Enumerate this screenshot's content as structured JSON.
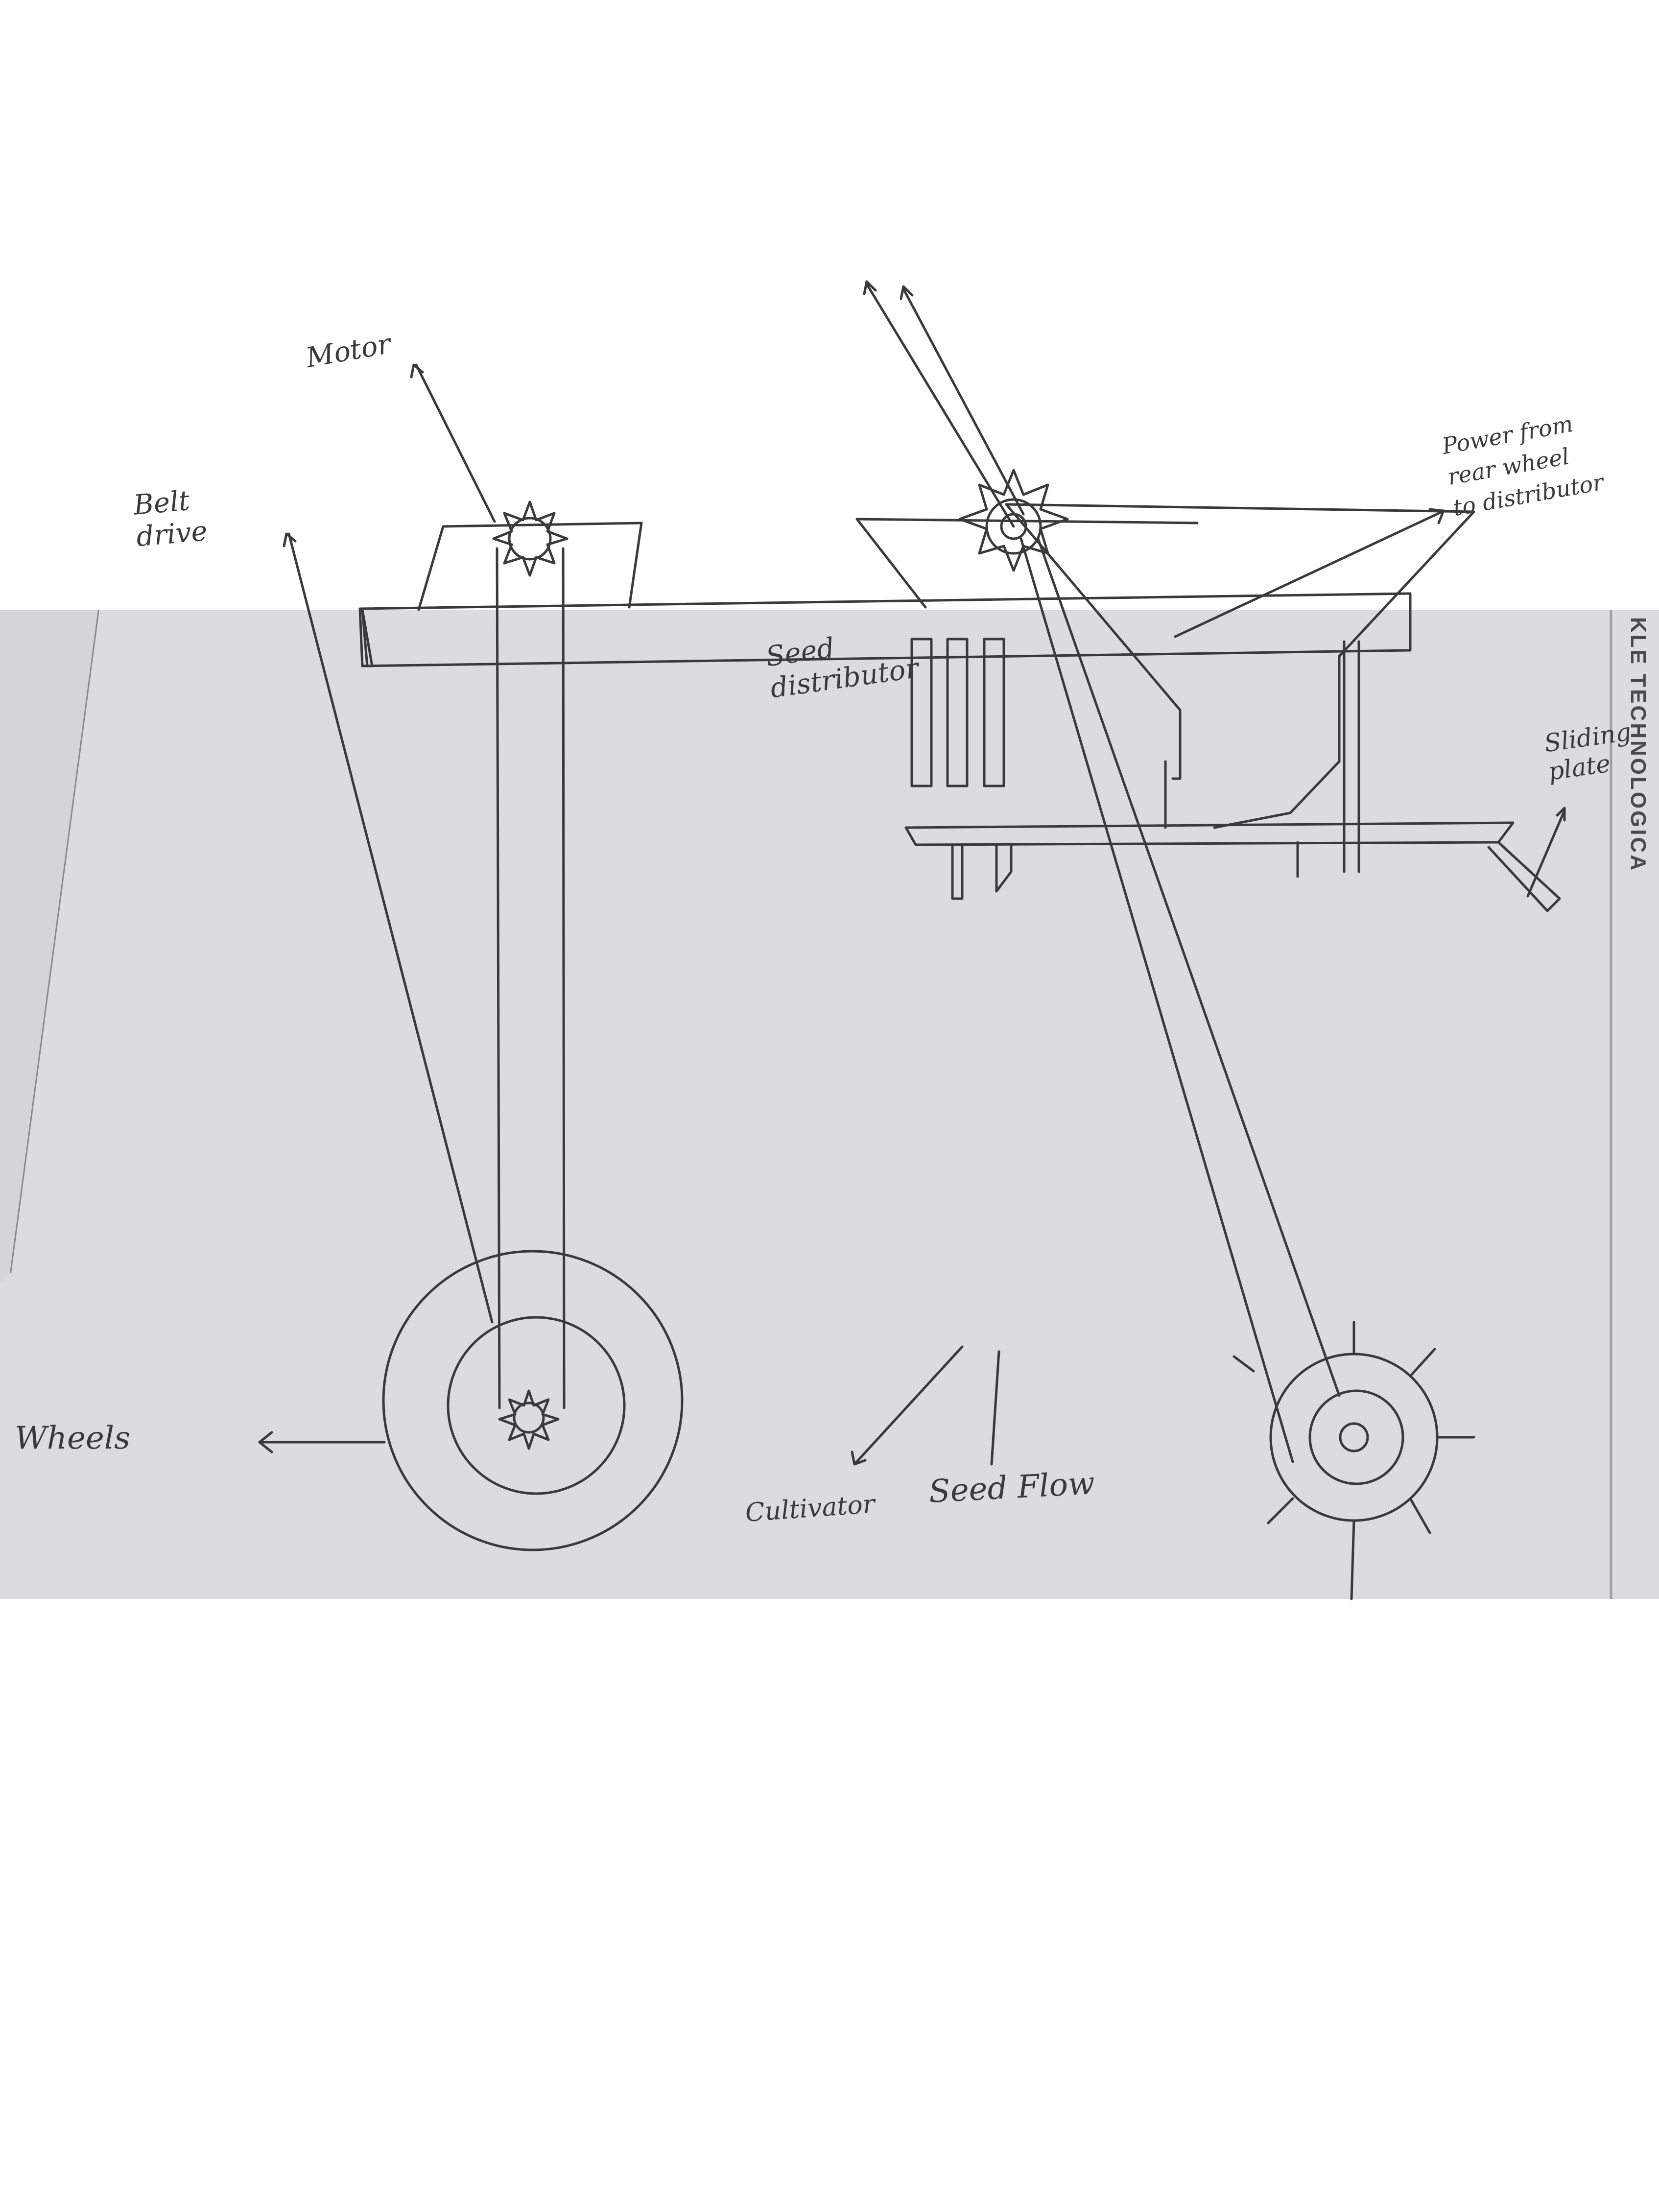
{
  "labels": {
    "seed_distributor": [
      "Seed",
      "distributor"
    ],
    "motor": "Motor",
    "belt_drive": [
      "Belt",
      "drive"
    ],
    "power": [
      "Power from",
      "rear wheel",
      "to distributor"
    ],
    "sliding_plate": [
      "Sliding",
      "plate"
    ],
    "wheels": "Wheels",
    "cultivator": "Cultivator",
    "seed_flow": "Seed Flow"
  },
  "stamp": "KLE TECHNOLOGICA",
  "colors": {
    "paper": "#dcdcde",
    "pencil": "#3a3a3a",
    "background": "#ffffff"
  }
}
